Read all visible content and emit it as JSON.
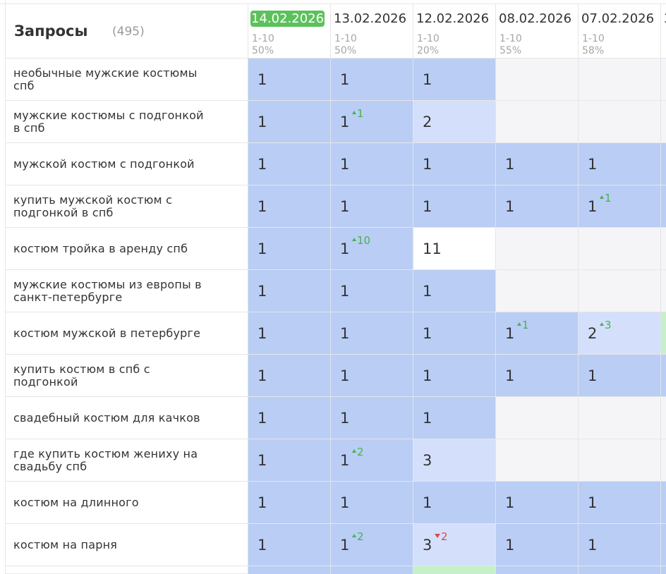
{
  "header": {
    "title": "Запросы",
    "count": "(495)"
  },
  "dates": [
    {
      "label": "14.02.2026",
      "range": "1-10",
      "pct": "50%",
      "current": true
    },
    {
      "label": "13.02.2026",
      "range": "1-10",
      "pct": "50%"
    },
    {
      "label": "12.02.2026",
      "range": "1-10",
      "pct": "20%"
    },
    {
      "label": "08.02.2026",
      "range": "1-10",
      "pct": "55%"
    },
    {
      "label": "07.02.2026",
      "range": "1-10",
      "pct": "58%"
    },
    {
      "label": "3",
      "range": "",
      "pct": ""
    }
  ],
  "rows": [
    {
      "query": "необычные мужские костюмы спб",
      "positions": [
        {
          "v": "1"
        },
        {
          "v": "1"
        },
        {
          "v": "1"
        },
        null,
        null,
        null
      ]
    },
    {
      "query": "мужские костюмы с подгонкой в спб",
      "positions": [
        {
          "v": "1"
        },
        {
          "v": "1",
          "d": "1",
          "dir": "up"
        },
        {
          "v": "2"
        },
        null,
        null,
        null
      ]
    },
    {
      "query": "мужской костюм с подгонкой",
      "positions": [
        {
          "v": "1"
        },
        {
          "v": "1"
        },
        {
          "v": "1"
        },
        {
          "v": "1"
        },
        {
          "v": "1"
        },
        {
          "v": ""
        }
      ]
    },
    {
      "query": "купить мужской костюм с подгонкой в спб",
      "positions": [
        {
          "v": "1"
        },
        {
          "v": "1"
        },
        {
          "v": "1"
        },
        {
          "v": "1"
        },
        {
          "v": "1",
          "d": "1",
          "dir": "up"
        },
        {
          "v": ""
        }
      ]
    },
    {
      "query": "костюм тройка в аренду спб",
      "positions": [
        {
          "v": "1"
        },
        {
          "v": "1",
          "d": "10",
          "dir": "up"
        },
        {
          "v": "11"
        },
        null,
        null,
        null
      ]
    },
    {
      "query": "мужские костюмы из европы в санкт-петербурге",
      "positions": [
        {
          "v": "1"
        },
        {
          "v": "1"
        },
        {
          "v": "1"
        },
        null,
        null,
        null
      ]
    },
    {
      "query": "костюм мужской в петербурге",
      "positions": [
        {
          "v": "1"
        },
        {
          "v": "1"
        },
        {
          "v": "1"
        },
        {
          "v": "1",
          "d": "1",
          "dir": "up"
        },
        {
          "v": "2",
          "d": "3",
          "dir": "up"
        },
        {
          "v": ""
        }
      ]
    },
    {
      "query": "купить костюм в спб с подгонкой",
      "positions": [
        {
          "v": "1"
        },
        {
          "v": "1"
        },
        {
          "v": "1"
        },
        {
          "v": "1"
        },
        {
          "v": "1"
        },
        {
          "v": ""
        }
      ]
    },
    {
      "query": "свадебный костюм для качков",
      "positions": [
        {
          "v": "1"
        },
        {
          "v": "1"
        },
        {
          "v": "1"
        },
        null,
        null,
        null
      ]
    },
    {
      "query": "где купить костюм жениху на свадьбу спб",
      "positions": [
        {
          "v": "1"
        },
        {
          "v": "1",
          "d": "2",
          "dir": "up"
        },
        {
          "v": "3"
        },
        null,
        null,
        null
      ]
    },
    {
      "query": "костюм на длинного",
      "positions": [
        {
          "v": "1"
        },
        {
          "v": "1"
        },
        {
          "v": "1"
        },
        {
          "v": "1"
        },
        {
          "v": "1"
        },
        {
          "v": ""
        }
      ]
    },
    {
      "query": "костюм на парня",
      "positions": [
        {
          "v": "1"
        },
        {
          "v": "1",
          "d": "2",
          "dir": "up"
        },
        {
          "v": "3",
          "d": "2",
          "dir": "down"
        },
        {
          "v": "1"
        },
        {
          "v": "1"
        },
        {
          "v": ""
        }
      ]
    }
  ],
  "colors": {
    "top": "#b9cdf5",
    "mid": "#d4e0fb",
    "none": "#f5f5f8",
    "current_date": "#5cc15c",
    "up": "#4cb050",
    "down": "#e04848"
  }
}
